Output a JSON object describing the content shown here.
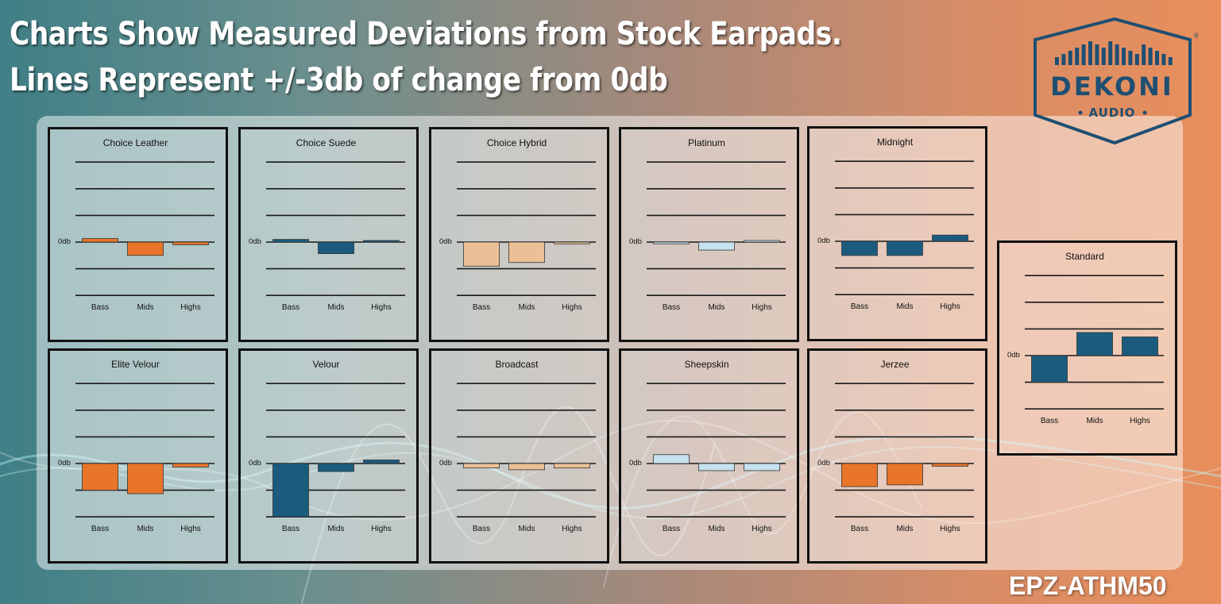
{
  "header": {
    "line1": "Charts Show Measured Deviations from Stock Earpads.",
    "line2": "Lines Represent +/-3db of change from 0db"
  },
  "logo": {
    "icon": "equalizer-bars-icon",
    "brand": "DEKONI",
    "sub": "AUDIO",
    "reg": "®",
    "color": "#1e4f72"
  },
  "model": "EPZ-ATHM50",
  "colors": {
    "orange": "#e8752a",
    "navy": "#1b5b7e",
    "tan": "#ebc096",
    "lightblue": "#c6e2ef"
  },
  "chart_data": [
    {
      "type": "bar",
      "title": "Choice Leather",
      "categories": [
        "Bass",
        "Mids",
        "Highs"
      ],
      "values": [
        0.4,
        -1.5,
        -0.3
      ],
      "color": "#e8752a",
      "zero_label": "0db",
      "ylim": [
        -6,
        9
      ]
    },
    {
      "type": "bar",
      "title": "Choice Suede",
      "categories": [
        "Bass",
        "Mids",
        "Highs"
      ],
      "values": [
        0.3,
        -1.3,
        0.1
      ],
      "color": "#1b5b7e",
      "zero_label": "0db",
      "ylim": [
        -6,
        9
      ]
    },
    {
      "type": "bar",
      "title": "Choice Hybrid",
      "categories": [
        "Bass",
        "Mids",
        "Highs"
      ],
      "values": [
        -2.7,
        -2.3,
        -0.2
      ],
      "color": "#ebc096",
      "zero_label": "0db",
      "ylim": [
        -6,
        9
      ]
    },
    {
      "type": "bar",
      "title": "Platinum",
      "categories": [
        "Bass",
        "Mids",
        "Highs"
      ],
      "values": [
        -0.2,
        -0.9,
        0
      ],
      "color": "#c6e2ef",
      "zero_label": "0db",
      "ylim": [
        -6,
        9
      ]
    },
    {
      "type": "bar",
      "title": "Midnight",
      "categories": [
        "Bass",
        "Mids",
        "Highs"
      ],
      "values": [
        -1.6,
        -1.6,
        0.7
      ],
      "color": "#1b5b7e",
      "zero_label": "0db",
      "ylim": [
        -6,
        9
      ]
    },
    {
      "type": "bar",
      "title": "Elite Velour",
      "categories": [
        "Bass",
        "Mids",
        "Highs"
      ],
      "values": [
        -3.0,
        -3.4,
        -0.4
      ],
      "color": "#e8752a",
      "zero_label": "0db",
      "ylim": [
        -6,
        9
      ]
    },
    {
      "type": "bar",
      "title": "Velour",
      "categories": [
        "Bass",
        "Mids",
        "Highs"
      ],
      "values": [
        -6.0,
        -0.9,
        0.4
      ],
      "color": "#1b5b7e",
      "zero_label": "0db",
      "ylim": [
        -6,
        9
      ]
    },
    {
      "type": "bar",
      "title": "Broadcast",
      "categories": [
        "Bass",
        "Mids",
        "Highs"
      ],
      "values": [
        -0.5,
        -0.7,
        -0.5
      ],
      "color": "#ebc096",
      "zero_label": "0db",
      "ylim": [
        -6,
        9
      ]
    },
    {
      "type": "bar",
      "title": "Sheepskin",
      "categories": [
        "Bass",
        "Mids",
        "Highs"
      ],
      "values": [
        1.0,
        -0.8,
        -0.8
      ],
      "color": "#c6e2ef",
      "zero_label": "0db",
      "ylim": [
        -6,
        9
      ]
    },
    {
      "type": "bar",
      "title": "Jerzee",
      "categories": [
        "Bass",
        "Mids",
        "Highs"
      ],
      "values": [
        -2.6,
        -2.4,
        -0.3
      ],
      "color": "#e8752a",
      "zero_label": "0db",
      "ylim": [
        -6,
        9
      ]
    },
    {
      "type": "bar",
      "title": "Standard",
      "categories": [
        "Bass",
        "Mids",
        "Highs"
      ],
      "values": [
        -3.0,
        2.6,
        2.1
      ],
      "color": "#1b5b7e",
      "zero_label": "0db",
      "ylim": [
        -6,
        9
      ]
    }
  ]
}
